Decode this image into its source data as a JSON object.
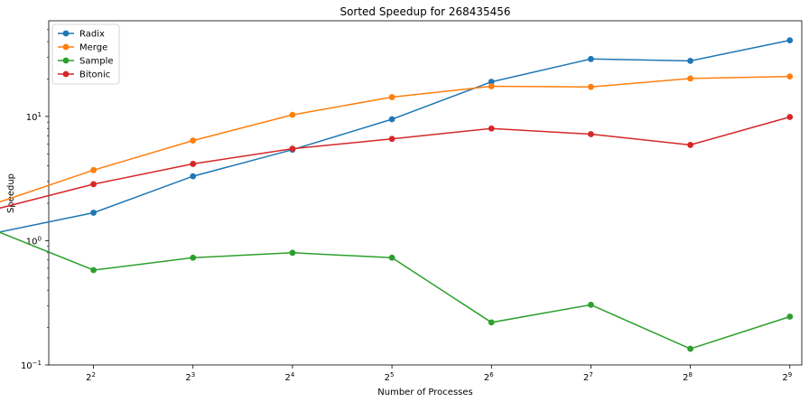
{
  "chart_data": {
    "type": "line",
    "title": "Sorted Speedup for 268435456",
    "xlabel": "Number of Processes",
    "ylabel": "Speedup",
    "x_scale": "log2",
    "y_scale": "log10",
    "x": [
      2,
      4,
      8,
      16,
      32,
      64,
      128,
      256,
      512
    ],
    "x_ticks": [
      {
        "value": 4,
        "base": "2",
        "exp": "2"
      },
      {
        "value": 8,
        "base": "2",
        "exp": "3"
      },
      {
        "value": 16,
        "base": "2",
        "exp": "4"
      },
      {
        "value": 32,
        "base": "2",
        "exp": "5"
      },
      {
        "value": 64,
        "base": "2",
        "exp": "6"
      },
      {
        "value": 128,
        "base": "2",
        "exp": "7"
      },
      {
        "value": 256,
        "base": "2",
        "exp": "8"
      },
      {
        "value": 512,
        "base": "2",
        "exp": "9"
      }
    ],
    "y_ticks": [
      {
        "value": 0.1,
        "base": "10",
        "exp": "−1"
      },
      {
        "value": 1,
        "base": "10",
        "exp": "0"
      },
      {
        "value": 10,
        "base": "10",
        "exp": "1"
      }
    ],
    "grid": false,
    "legend_position": "top-left",
    "series": [
      {
        "name": "Radix",
        "color": "#1f77b4",
        "values": [
          1.15,
          1.68,
          3.3,
          5.4,
          9.5,
          19.0,
          29.0,
          28.0,
          41.0
        ]
      },
      {
        "name": "Merge",
        "color": "#ff7f0e",
        "values": [
          1.98,
          3.7,
          6.4,
          10.3,
          14.3,
          17.5,
          17.3,
          20.2,
          21.0
        ]
      },
      {
        "name": "Sample",
        "color": "#2ca02c",
        "values": [
          1.22,
          0.58,
          0.73,
          0.8,
          0.73,
          0.22,
          0.305,
          0.135,
          0.245
        ]
      },
      {
        "name": "Bitonic",
        "color": "#d62728",
        "values": [
          1.78,
          2.85,
          4.15,
          5.5,
          6.6,
          8.0,
          7.2,
          5.9,
          9.9
        ]
      }
    ]
  }
}
